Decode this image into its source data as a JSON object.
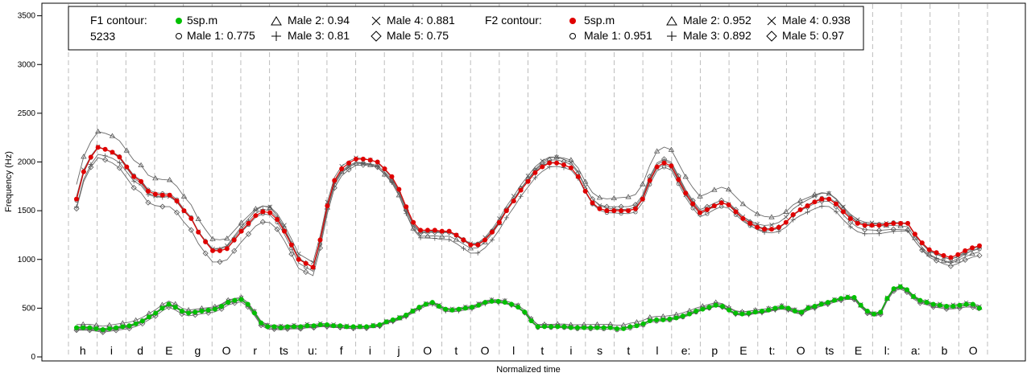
{
  "chart_data": {
    "type": "line",
    "xlabel": "Normalized time",
    "ylabel": "Frequency (Hz)",
    "ylim": [
      0,
      3600
    ],
    "yticks": [
      0,
      500,
      1000,
      1500,
      2000,
      2500,
      3000,
      3500
    ],
    "grid": "vertical dashed segment boundaries",
    "segments": [
      "h",
      "i",
      "d",
      "E",
      "g",
      "O",
      "r",
      "ts",
      "u:",
      "f",
      "i",
      "j",
      "O",
      "t",
      "O",
      "l",
      "t",
      "i",
      "s",
      "t",
      "l",
      "e:",
      "p",
      "E",
      "t:",
      "O",
      "ts",
      "E",
      "l:",
      "a:",
      "b",
      "O"
    ],
    "legend": {
      "f1_title": "F1 contour:",
      "f1_subtitle": "5233",
      "f2_title": "F2 contour:",
      "f1_entries": [
        "5sp.m",
        "Male 1: 0.775",
        "Male 2: 0.94",
        "Male 3: 0.81",
        "Male 4: 0.881",
        "Male 5: 0.75"
      ],
      "f2_entries": [
        "5sp.m",
        "Male 1: 0.951",
        "Male 2: 0.952",
        "Male 3: 0.892",
        "Male 4: 0.938",
        "Male 5: 0.97"
      ]
    },
    "colors": {
      "f1_main": "#00c000",
      "f2_main": "#e00000",
      "speakers": "#555555"
    },
    "f2_main": [
      1620,
      1900,
      2050,
      2150,
      2130,
      2100,
      2050,
      1950,
      1850,
      1800,
      1700,
      1670,
      1660,
      1660,
      1600,
      1500,
      1420,
      1280,
      1180,
      1090,
      1090,
      1110,
      1200,
      1290,
      1370,
      1450,
      1490,
      1480,
      1410,
      1290,
      1150,
      1000,
      960,
      920,
      1200,
      1550,
      1810,
      1930,
      1990,
      2030,
      2030,
      2020,
      2000,
      1930,
      1850,
      1720,
      1540,
      1380,
      1300,
      1300,
      1300,
      1290,
      1290,
      1250,
      1200,
      1150,
      1150,
      1200,
      1280,
      1380,
      1500,
      1600,
      1710,
      1800,
      1890,
      1950,
      1990,
      1990,
      1970,
      1940,
      1850,
      1700,
      1580,
      1520,
      1500,
      1500,
      1500,
      1500,
      1520,
      1620,
      1810,
      1950,
      1990,
      1960,
      1820,
      1680,
      1570,
      1480,
      1510,
      1550,
      1580,
      1560,
      1490,
      1420,
      1370,
      1330,
      1310,
      1310,
      1330,
      1380,
      1460,
      1510,
      1550,
      1590,
      1620,
      1620,
      1570,
      1490,
      1420,
      1370,
      1350,
      1350,
      1350,
      1360,
      1370,
      1370,
      1370,
      1260,
      1170,
      1100,
      1070,
      1040,
      1020,
      1050,
      1090,
      1120,
      1140
    ],
    "f1_main": [
      300,
      300,
      300,
      290,
      280,
      290,
      300,
      310,
      320,
      340,
      370,
      410,
      450,
      500,
      540,
      510,
      470,
      450,
      460,
      470,
      480,
      490,
      520,
      560,
      580,
      590,
      540,
      450,
      350,
      310,
      310,
      300,
      310,
      310,
      310,
      320,
      320,
      330,
      330,
      320,
      320,
      310,
      310,
      310,
      310,
      320,
      330,
      360,
      380,
      400,
      430,
      470,
      510,
      540,
      560,
      520,
      490,
      480,
      490,
      500,
      510,
      530,
      560,
      570,
      570,
      560,
      540,
      510,
      460,
      370,
      310,
      310,
      310,
      310,
      310,
      300,
      300,
      300,
      300,
      300,
      300,
      300,
      290,
      290,
      310,
      320,
      340,
      370,
      380,
      380,
      390,
      400,
      420,
      440,
      470,
      490,
      510,
      530,
      520,
      480,
      450,
      440,
      450,
      460,
      470,
      480,
      500,
      510,
      500,
      470,
      460,
      500,
      520,
      540,
      560,
      580,
      600,
      610,
      610,
      530,
      470,
      440,
      460,
      600,
      700,
      720,
      690,
      620,
      580,
      560,
      540,
      530,
      520,
      520,
      530,
      540,
      540,
      500
    ]
  }
}
